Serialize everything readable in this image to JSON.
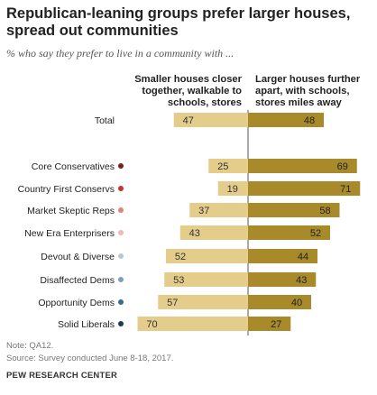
{
  "title": "Republican-leaning groups prefer larger houses, spread out communities",
  "subtitle": "% who say they prefer to live in a community with ...",
  "note": "Note: QA12.",
  "source": "Source: Survey conducted June 8-18, 2017.",
  "org": "PEW RESEARCH CENTER",
  "colors": {
    "smaller": "#e4cc8b",
    "larger": "#a88a2a",
    "divider": "#555555"
  },
  "chart_data": {
    "type": "bar",
    "orientation": "diverging-horizontal",
    "series": [
      {
        "name": "Smaller houses closer together, walkable to schools, stores",
        "values": [
          47,
          25,
          19,
          37,
          43,
          52,
          53,
          57,
          70
        ]
      },
      {
        "name": "Larger houses further apart, with schools, stores miles away",
        "values": [
          48,
          69,
          71,
          58,
          52,
          44,
          43,
          40,
          27
        ]
      }
    ],
    "categories": [
      "Total",
      "Core Conservatives",
      "Country First Conservs",
      "Market Skeptic Reps",
      "New Era Enterprisers",
      "Devout & Diverse",
      "Disaffected Dems",
      "Opportunity Dems",
      "Solid Liberals"
    ],
    "dot_colors": [
      null,
      "#7b1f1f",
      "#c8342c",
      "#e08478",
      "#f0b8b0",
      "#b9c7d7",
      "#7fa1bf",
      "#3f6a8f",
      "#1f3a55"
    ],
    "xlim": [
      0,
      100
    ]
  }
}
